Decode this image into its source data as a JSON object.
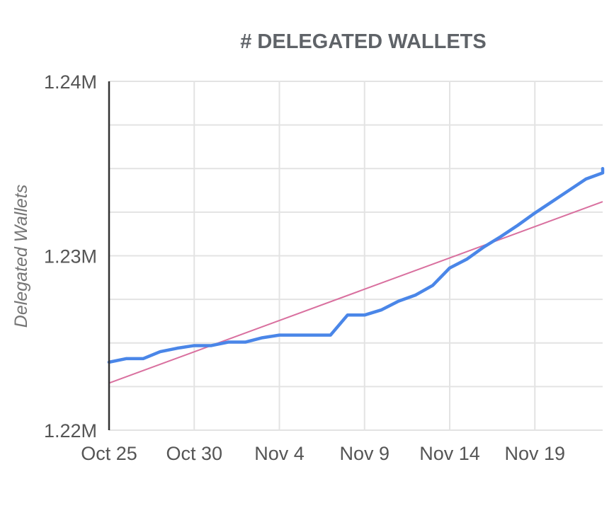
{
  "chart_data": {
    "type": "line",
    "title": "# DELEGATED WALLETS",
    "xlabel": "",
    "ylabel": "Delegated Wallets",
    "ylim": [
      1220000,
      1240000
    ],
    "yticks": [
      "1.24M",
      "1.23M",
      "1.22M"
    ],
    "xticks": [
      "Oct 25",
      "Oct 30",
      "Nov 4",
      "Nov 9",
      "Nov 14",
      "Nov 19"
    ],
    "grid": true,
    "legend": "none",
    "x": [
      "Oct 25",
      "Oct 26",
      "Oct 27",
      "Oct 28",
      "Oct 29",
      "Oct 30",
      "Oct 31",
      "Nov 1",
      "Nov 2",
      "Nov 3",
      "Nov 4",
      "Nov 5",
      "Nov 6",
      "Nov 7",
      "Nov 8",
      "Nov 9",
      "Nov 10",
      "Nov 11",
      "Nov 12",
      "Nov 13",
      "Nov 14",
      "Nov 15",
      "Nov 16",
      "Nov 17",
      "Nov 18",
      "Nov 19",
      "Nov 20",
      "Nov 21",
      "Nov 22",
      "Nov 23",
      "Nov 24"
    ],
    "series": [
      {
        "values": [
          1223900,
          1224100,
          1224100,
          1224500,
          1224700,
          1224850,
          1224850,
          1225050,
          1225050,
          1225300,
          1225450,
          1225450,
          1225450,
          1225450,
          1226600,
          1226600,
          1226900,
          1227400,
          1227750,
          1228300,
          1229300,
          1229800,
          1230500,
          1231100,
          1231750,
          1232450,
          1233100,
          1233750,
          1234400,
          1234750,
          1235000
        ],
        "color": "#4a86e8"
      },
      {
        "values": [
          1222700,
          1233100
        ],
        "x": [
          "Oct 25",
          "Nov 24"
        ],
        "kind": "trendline",
        "color": "#d9709f"
      }
    ]
  }
}
